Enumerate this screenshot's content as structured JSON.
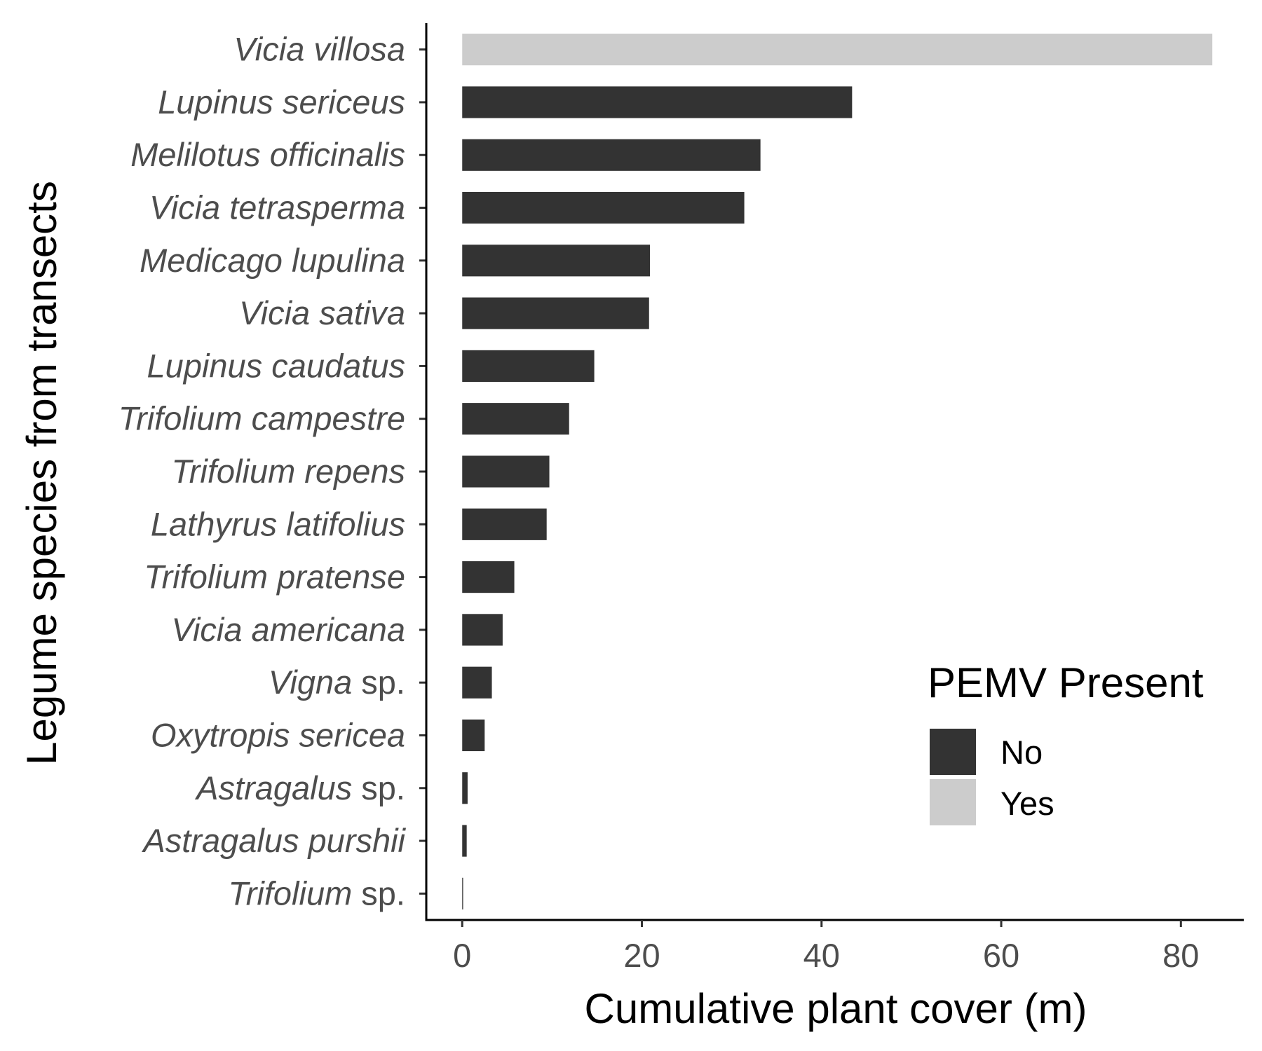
{
  "chart_data": {
    "type": "bar",
    "orientation": "horizontal",
    "title": "",
    "xlabel": "Cumulative plant cover (m)",
    "ylabel": "Legume species from transects",
    "xlim": [
      -4,
      87
    ],
    "xticks": [
      0,
      20,
      40,
      60,
      80
    ],
    "grid": false,
    "legend": {
      "title": "PEMV Present",
      "placement": "right",
      "entries": [
        {
          "label": "No",
          "color": "#333333"
        },
        {
          "label": "Yes",
          "color": "#cccccc"
        }
      ]
    },
    "categories": [
      {
        "italic": "Vicia villosa",
        "suffix": "",
        "value": 83.5,
        "pemv": "Yes"
      },
      {
        "italic": "Lupinus sericeus",
        "suffix": "",
        "value": 43.4,
        "pemv": "No"
      },
      {
        "italic": "Melilotus officinalis",
        "suffix": "",
        "value": 33.2,
        "pemv": "No"
      },
      {
        "italic": "Vicia tetrasperma",
        "suffix": "",
        "value": 31.4,
        "pemv": "No"
      },
      {
        "italic": "Medicago lupulina",
        "suffix": "",
        "value": 20.9,
        "pemv": "No"
      },
      {
        "italic": "Vicia sativa",
        "suffix": "",
        "value": 20.8,
        "pemv": "No"
      },
      {
        "italic": "Lupinus caudatus",
        "suffix": "",
        "value": 14.7,
        "pemv": "No"
      },
      {
        "italic": "Trifolium campestre",
        "suffix": "",
        "value": 11.9,
        "pemv": "No"
      },
      {
        "italic": "Trifolium repens",
        "suffix": "",
        "value": 9.7,
        "pemv": "No"
      },
      {
        "italic": "Lathyrus latifolius",
        "suffix": "",
        "value": 9.4,
        "pemv": "No"
      },
      {
        "italic": "Trifolium pratense",
        "suffix": "",
        "value": 5.8,
        "pemv": "No"
      },
      {
        "italic": "Vicia americana",
        "suffix": "",
        "value": 4.5,
        "pemv": "No"
      },
      {
        "italic": "Vigna",
        "suffix": " sp.",
        "value": 3.3,
        "pemv": "No"
      },
      {
        "italic": "Oxytropis sericea",
        "suffix": "",
        "value": 2.5,
        "pemv": "No"
      },
      {
        "italic": "Astragalus",
        "suffix": " sp.",
        "value": 0.6,
        "pemv": "No"
      },
      {
        "italic": "Astragalus purshii",
        "suffix": "",
        "value": 0.5,
        "pemv": "No"
      },
      {
        "italic": "Trifolium",
        "suffix": " sp.",
        "value": 0.1,
        "pemv": "No"
      }
    ]
  }
}
